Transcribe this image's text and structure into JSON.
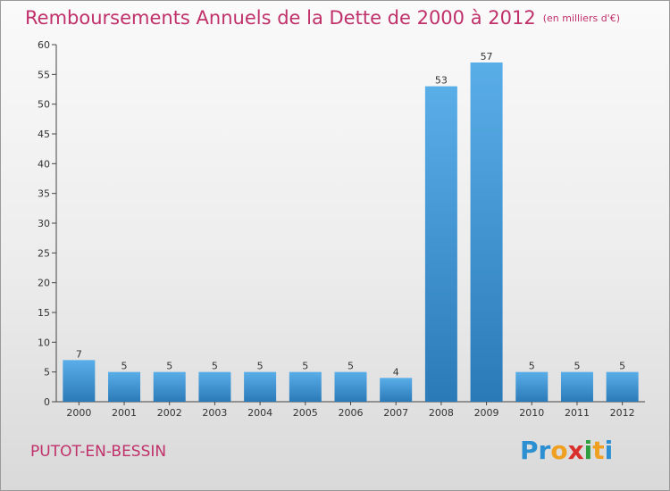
{
  "title": "Remboursements Annuels de la Dette de 2000 à 2012",
  "subtitle": "(en milliers d'€)",
  "commune": "PUTOT-EN-BESSIN",
  "logo": {
    "letters": [
      "P",
      "r",
      "o",
      "x",
      "i",
      "t",
      "i"
    ],
    "colors": [
      "#2b8fd1",
      "#2b8fd1",
      "#f0a020",
      "#d9302c",
      "#2e9e3e",
      "#f0a020",
      "#2b8fd1"
    ]
  },
  "colors": {
    "bar_light": "#5aaee8",
    "bar_dark": "#2a7ab8",
    "title": "#c0306a"
  },
  "chart_data": {
    "type": "bar",
    "categories": [
      "2000",
      "2001",
      "2002",
      "2003",
      "2004",
      "2005",
      "2006",
      "2007",
      "2008",
      "2009",
      "2010",
      "2011",
      "2012"
    ],
    "values": [
      7,
      5,
      5,
      5,
      5,
      5,
      5,
      4,
      53,
      57,
      5,
      5,
      5
    ],
    "data_labels": [
      "7",
      "5",
      "5",
      "5",
      "5",
      "5",
      "5",
      "4",
      "53",
      "57",
      "5",
      "5",
      "5"
    ],
    "ylim": [
      0,
      60
    ],
    "yticks": [
      0,
      5,
      10,
      15,
      20,
      25,
      30,
      35,
      40,
      45,
      50,
      55,
      60
    ],
    "ytick_labels": [
      "0",
      "5",
      "10",
      "15",
      "20",
      "25",
      "30",
      "35",
      "40",
      "45",
      "50",
      "55",
      "60"
    ],
    "grid": false,
    "title": "Remboursements Annuels de la Dette de 2000 à 2012",
    "xlabel": "",
    "ylabel": ""
  }
}
